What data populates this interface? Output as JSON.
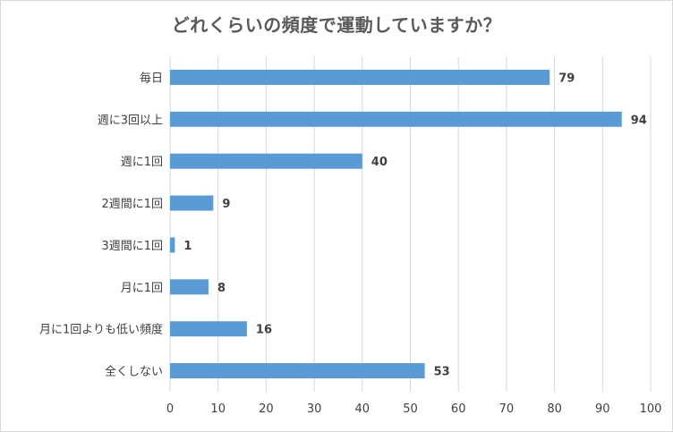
{
  "chart_data": {
    "type": "bar",
    "orientation": "horizontal",
    "title": "どれくらいの頻度で運動していますか？",
    "categories": [
      "毎日",
      "週に3回以上",
      "週に1回",
      "2週間に1回",
      "3週間に1回",
      "月に1回",
      "月に1回よりも低い頻度",
      "全くしない"
    ],
    "values": [
      79,
      94,
      40,
      9,
      1,
      8,
      16,
      53
    ],
    "xlim": [
      0,
      100
    ],
    "xticks": [
      "0",
      "10",
      "20",
      "30",
      "40",
      "50",
      "60",
      "70",
      "80",
      "90",
      "100"
    ],
    "grid": true,
    "legend": "none",
    "data_labels": true,
    "bar_color": "#5b9bd5"
  }
}
